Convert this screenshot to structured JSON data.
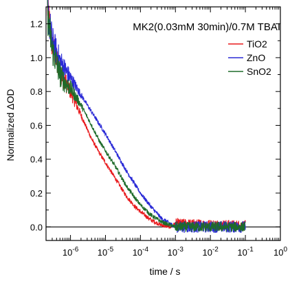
{
  "chart_data": {
    "type": "line",
    "title": "",
    "annotation": "MK2(0.03mM 30min)/0.7M TBAI",
    "xlabel": "time / s",
    "ylabel": "Normalized ΔOD",
    "x_scale": "log",
    "xlim": [
      2e-07,
      1
    ],
    "ylim": [
      -0.08,
      1.3
    ],
    "legend_position": "top-right",
    "x_ticks": [
      {
        "value": 1e-06,
        "base": "10",
        "exp": "-6"
      },
      {
        "value": 1e-05,
        "base": "10",
        "exp": "-5"
      },
      {
        "value": 0.0001,
        "base": "10",
        "exp": "-4"
      },
      {
        "value": 0.001,
        "base": "10",
        "exp": "-3"
      },
      {
        "value": 0.01,
        "base": "10",
        "exp": "-2"
      },
      {
        "value": 0.1,
        "base": "10",
        "exp": "-1"
      },
      {
        "value": 1,
        "base": "10",
        "exp": "0"
      }
    ],
    "y_ticks": [
      {
        "value": 0.0,
        "label": "0.0"
      },
      {
        "value": 0.2,
        "label": "0.2"
      },
      {
        "value": 0.4,
        "label": "0.4"
      },
      {
        "value": 0.6,
        "label": "0.6"
      },
      {
        "value": 0.8,
        "label": "0.8"
      },
      {
        "value": 1.0,
        "label": "1.0"
      },
      {
        "value": 1.2,
        "label": "1.2"
      }
    ],
    "series": [
      {
        "name": "TiO2",
        "color": "#e8191c",
        "noise_late": 0.03,
        "points": [
          [
            2.2e-07,
            1.3
          ],
          [
            3e-07,
            1.08
          ],
          [
            5e-07,
            0.93
          ],
          [
            7e-07,
            0.86
          ],
          [
            1e-06,
            0.8
          ],
          [
            2e-06,
            0.66
          ],
          [
            4e-06,
            0.52
          ],
          [
            7e-06,
            0.43
          ],
          [
            1e-05,
            0.38
          ],
          [
            2e-05,
            0.28
          ],
          [
            4e-05,
            0.18
          ],
          [
            7e-05,
            0.12
          ],
          [
            0.0001,
            0.09
          ],
          [
            0.0002,
            0.04
          ],
          [
            0.0004,
            0.01
          ],
          [
            0.0007,
            0.0
          ],
          [
            0.001,
            0.02
          ],
          [
            0.1,
            0.01
          ]
        ]
      },
      {
        "name": "ZnO",
        "color": "#2a2ad6",
        "noise_late": 0.035,
        "points": [
          [
            2.2e-07,
            1.28
          ],
          [
            3e-07,
            1.1
          ],
          [
            5e-07,
            0.98
          ],
          [
            7e-07,
            0.93
          ],
          [
            1e-06,
            0.88
          ],
          [
            2e-06,
            0.78
          ],
          [
            4e-06,
            0.68
          ],
          [
            7e-06,
            0.6
          ],
          [
            1e-05,
            0.55
          ],
          [
            2e-05,
            0.44
          ],
          [
            4e-05,
            0.33
          ],
          [
            7e-05,
            0.25
          ],
          [
            0.0001,
            0.2
          ],
          [
            0.0002,
            0.12
          ],
          [
            0.0004,
            0.05
          ],
          [
            0.0007,
            0.02
          ],
          [
            0.001,
            0.0
          ],
          [
            0.1,
            0.0
          ]
        ]
      },
      {
        "name": "SnO2",
        "color": "#1e6b2a",
        "noise_late": 0.03,
        "points": [
          [
            2.2e-07,
            1.25
          ],
          [
            3e-07,
            1.05
          ],
          [
            5e-07,
            0.9
          ],
          [
            7e-07,
            0.85
          ],
          [
            1e-06,
            0.82
          ],
          [
            2e-06,
            0.72
          ],
          [
            4e-06,
            0.6
          ],
          [
            7e-06,
            0.5
          ],
          [
            1e-05,
            0.45
          ],
          [
            2e-05,
            0.35
          ],
          [
            4e-05,
            0.24
          ],
          [
            7e-05,
            0.17
          ],
          [
            0.0001,
            0.13
          ],
          [
            0.0002,
            0.07
          ],
          [
            0.0004,
            0.03
          ],
          [
            0.0007,
            0.01
          ],
          [
            0.001,
            0.0
          ],
          [
            0.1,
            0.0
          ]
        ]
      }
    ]
  }
}
